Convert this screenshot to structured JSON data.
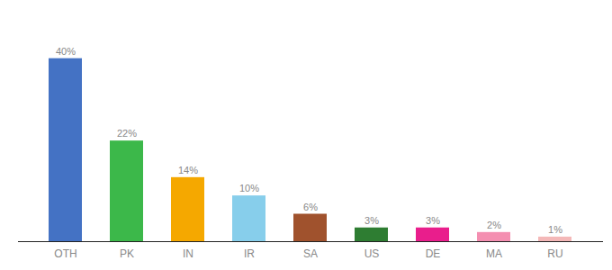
{
  "chart_data": {
    "type": "bar",
    "categories": [
      "OTH",
      "PK",
      "IN",
      "IR",
      "SA",
      "US",
      "DE",
      "MA",
      "RU"
    ],
    "values": [
      40,
      22,
      14,
      10,
      6,
      3,
      3,
      2,
      1
    ],
    "value_labels": [
      "40%",
      "22%",
      "14%",
      "10%",
      "6%",
      "3%",
      "3%",
      "2%",
      "1%"
    ],
    "colors": [
      "#4472c4",
      "#3cb84a",
      "#f5a800",
      "#87ceeb",
      "#a0522d",
      "#2e7d32",
      "#e91e8c",
      "#f48fb1",
      "#f4b8b8"
    ],
    "ylim": [
      0,
      48
    ],
    "data_labels": true,
    "tick_labels": "x",
    "grid": false
  }
}
